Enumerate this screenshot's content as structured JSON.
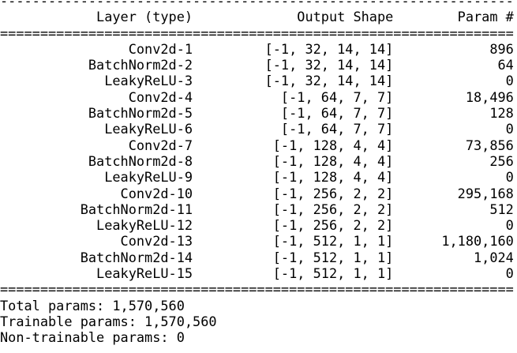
{
  "rules": {
    "dash": "----------------------------------------------------------------",
    "equals": "================================================================"
  },
  "header": {
    "layer": "Layer (type)",
    "shape": "Output Shape",
    "params": "Param #"
  },
  "rows": [
    {
      "layer": "Conv2d-1",
      "shape": "[-1, 32, 14, 14]",
      "params": "896"
    },
    {
      "layer": "BatchNorm2d-2",
      "shape": "[-1, 32, 14, 14]",
      "params": "64"
    },
    {
      "layer": "LeakyReLU-3",
      "shape": "[-1, 32, 14, 14]",
      "params": "0"
    },
    {
      "layer": "Conv2d-4",
      "shape": "[-1, 64, 7, 7]",
      "params": "18,496"
    },
    {
      "layer": "BatchNorm2d-5",
      "shape": "[-1, 64, 7, 7]",
      "params": "128"
    },
    {
      "layer": "LeakyReLU-6",
      "shape": "[-1, 64, 7, 7]",
      "params": "0"
    },
    {
      "layer": "Conv2d-7",
      "shape": "[-1, 128, 4, 4]",
      "params": "73,856"
    },
    {
      "layer": "BatchNorm2d-8",
      "shape": "[-1, 128, 4, 4]",
      "params": "256"
    },
    {
      "layer": "LeakyReLU-9",
      "shape": "[-1, 128, 4, 4]",
      "params": "0"
    },
    {
      "layer": "Conv2d-10",
      "shape": "[-1, 256, 2, 2]",
      "params": "295,168"
    },
    {
      "layer": "BatchNorm2d-11",
      "shape": "[-1, 256, 2, 2]",
      "params": "512"
    },
    {
      "layer": "LeakyReLU-12",
      "shape": "[-1, 256, 2, 2]",
      "params": "0"
    },
    {
      "layer": "Conv2d-13",
      "shape": "[-1, 512, 1, 1]",
      "params": "1,180,160"
    },
    {
      "layer": "BatchNorm2d-14",
      "shape": "[-1, 512, 1, 1]",
      "params": "1,024"
    },
    {
      "layer": "LeakyReLU-15",
      "shape": "[-1, 512, 1, 1]",
      "params": "0"
    }
  ],
  "totals": {
    "total": "Total params: 1,570,560",
    "trainable": "Trainable params: 1,570,560",
    "non_trainable": "Non-trainable params: 0"
  }
}
